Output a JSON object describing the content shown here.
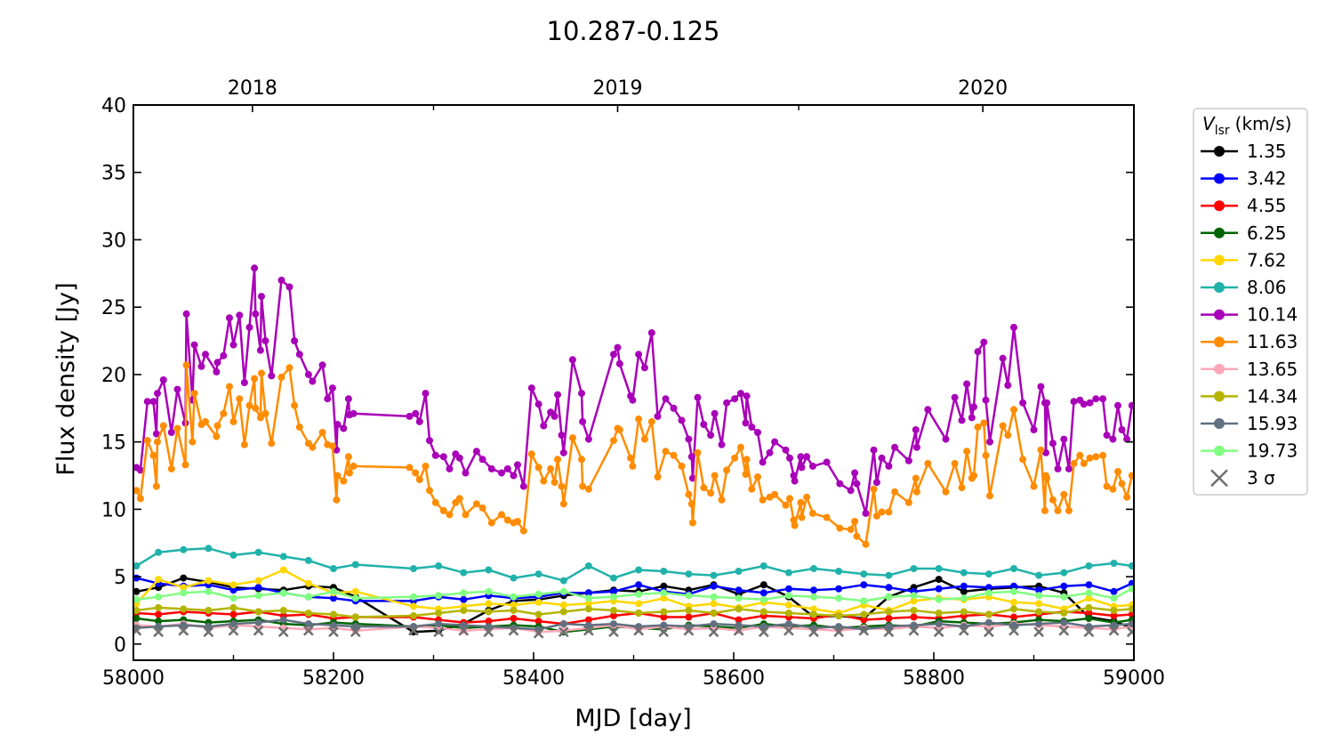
{
  "chart_data": {
    "type": "line",
    "title": "10.287-0.125",
    "xlabel": "MJD [day]",
    "ylabel": "Flux density [Jy]",
    "xlim": [
      58000,
      59000
    ],
    "ylim": [
      -1.2,
      40
    ],
    "grid": false,
    "xticks": [
      58000,
      58200,
      58400,
      58600,
      58800,
      59000
    ],
    "xticks_minor": [
      58100,
      58300,
      58500,
      58700,
      58900
    ],
    "yticks": [
      0,
      5,
      10,
      15,
      20,
      25,
      30,
      35,
      40
    ],
    "top_axis": {
      "ticks": [
        {
          "mjd": 58119,
          "label": "2018"
        },
        {
          "mjd": 58484,
          "label": "2019"
        },
        {
          "mjd": 58849,
          "label": "2020"
        }
      ],
      "minor_ticks_mjd": [
        58300,
        58665
      ]
    },
    "legend": {
      "placement": "outside-right",
      "title_symbol": "V",
      "title_subscript": "lsr",
      "title_unit": "(km/s)"
    },
    "x_dense": [
      58003,
      58007,
      58014,
      58020,
      58023,
      58024,
      58030,
      58038,
      58044,
      58052,
      58053,
      58059,
      58061,
      58068,
      58072,
      58083,
      58084,
      58090,
      58096,
      58100,
      58106,
      58111,
      58116,
      58121,
      58122,
      58127,
      58128,
      58132,
      58138,
      58148,
      58156,
      58161,
      58166,
      58175,
      58179,
      58189,
      58194,
      58199,
      58203,
      58204,
      58210,
      58215,
      58216,
      58220,
      58276,
      58282,
      58286,
      58292,
      58296,
      58302,
      58310,
      58316,
      58322,
      58326,
      58332,
      58343,
      58349,
      58358,
      58368,
      58374,
      58380,
      58384,
      58390,
      58398,
      58405,
      58410,
      58417,
      58421,
      58424,
      58428,
      58430,
      58439,
      58448,
      58449,
      58455,
      58480,
      58484,
      58486,
      58497,
      58499,
      58505,
      58511,
      58518,
      58524,
      58532,
      58540,
      58548,
      58555,
      58558,
      58559,
      58564,
      58570,
      58577,
      58581,
      58588,
      58593,
      58601,
      58607,
      58612,
      58613,
      58618,
      58624,
      58629,
      58636,
      58641,
      58652,
      58656,
      58660,
      58661,
      58667,
      58668,
      58673,
      58679,
      58693,
      58706,
      58717,
      58721,
      58723,
      58732,
      58740,
      58743,
      58748,
      58755,
      58761,
      58775,
      58782,
      58783,
      58794,
      58812,
      58821,
      58828,
      58833,
      58838,
      58840,
      58844,
      58850,
      58852,
      58856,
      58869,
      58874,
      58880,
      58889,
      58900,
      58907,
      58911,
      58912,
      58913,
      58919,
      58924,
      58930,
      58935,
      58940,
      58946,
      58950,
      58956,
      58962,
      58969,
      58973,
      58979,
      58984,
      58988,
      58993,
      58998
    ],
    "x_grid": [
      58003,
      58025,
      58050,
      58075,
      58100,
      58125,
      58150,
      58175,
      58200,
      58222,
      58280,
      58305,
      58330,
      58355,
      58380,
      58405,
      58430,
      58455,
      58480,
      58505,
      58530,
      58555,
      58580,
      58605,
      58630,
      58655,
      58680,
      58705,
      58730,
      58755,
      58780,
      58805,
      58830,
      58855,
      58880,
      58905,
      58930,
      58955,
      58980,
      58998
    ],
    "series": [
      {
        "name": "1.35",
        "color": "#000000",
        "x_set": "x_grid",
        "marker": "o",
        "values": [
          3.9,
          4.2,
          4.9,
          4.6,
          4.2,
          4.1,
          4.0,
          4.3,
          4.2,
          3.5,
          0.9,
          1.0,
          1.5,
          2.5,
          3.2,
          3.3,
          3.6,
          3.8,
          4.0,
          3.9,
          4.3,
          4.0,
          4.4,
          3.7,
          4.4,
          3.5,
          2.0,
          2.1,
          1.9,
          3.5,
          4.2,
          4.8,
          3.9,
          4.1,
          4.2,
          4.3,
          3.8,
          2.0,
          1.7,
          1.2
        ]
      },
      {
        "name": "3.42",
        "color": "#0000ff",
        "x_set": "x_grid",
        "marker": "o",
        "values": [
          4.9,
          4.5,
          4.3,
          4.4,
          4.0,
          4.2,
          3.8,
          3.5,
          3.4,
          3.2,
          3.2,
          3.5,
          3.3,
          3.6,
          3.4,
          3.5,
          3.8,
          3.8,
          3.9,
          4.4,
          3.9,
          3.7,
          4.3,
          4.0,
          3.8,
          4.1,
          4.0,
          4.1,
          4.4,
          4.2,
          3.9,
          4.1,
          4.3,
          4.2,
          4.3,
          4.0,
          4.3,
          4.4,
          3.9,
          4.5
        ]
      },
      {
        "name": "4.55",
        "color": "#ff0000",
        "x_set": "x_grid",
        "marker": "o",
        "values": [
          2.3,
          2.2,
          2.4,
          2.3,
          2.2,
          2.4,
          2.1,
          2.2,
          1.9,
          2.0,
          2.0,
          1.8,
          1.6,
          1.7,
          1.9,
          1.7,
          1.5,
          1.8,
          2.1,
          2.3,
          2.0,
          2.0,
          2.3,
          1.8,
          2.1,
          2.0,
          1.9,
          2.2,
          1.8,
          1.9,
          2.0,
          1.9,
          2.1,
          2.2,
          2.0,
          2.2,
          2.4,
          2.3,
          2.1,
          2.2
        ]
      },
      {
        "name": "6.25",
        "color": "#006400",
        "x_set": "x_grid",
        "marker": "o",
        "values": [
          1.9,
          1.7,
          1.8,
          1.6,
          1.7,
          1.8,
          1.5,
          1.4,
          1.6,
          1.5,
          1.3,
          1.4,
          1.2,
          1.3,
          1.4,
          1.3,
          0.9,
          1.1,
          1.3,
          1.2,
          1.1,
          1.4,
          1.3,
          1.2,
          1.5,
          1.3,
          1.4,
          1.2,
          1.3,
          1.4,
          1.3,
          1.7,
          1.6,
          1.5,
          1.6,
          1.8,
          1.7,
          1.9,
          1.6,
          1.8
        ]
      },
      {
        "name": "7.62",
        "color": "#ffd700",
        "x_set": "x_grid",
        "marker": "o",
        "values": [
          3.0,
          4.8,
          4.2,
          4.7,
          4.4,
          4.7,
          5.5,
          4.5,
          3.8,
          3.9,
          2.8,
          2.6,
          2.8,
          3.0,
          2.9,
          3.1,
          2.9,
          3.0,
          3.2,
          3.0,
          3.4,
          2.8,
          3.0,
          2.7,
          3.1,
          2.9,
          2.6,
          2.3,
          2.9,
          2.5,
          3.2,
          3.4,
          3.3,
          3.5,
          3.1,
          3.0,
          2.6,
          3.4,
          2.8,
          2.9
        ]
      },
      {
        "name": "8.06",
        "color": "#20b2aa",
        "x_set": "x_grid",
        "marker": "o",
        "values": [
          5.8,
          6.8,
          7.0,
          7.1,
          6.6,
          6.8,
          6.5,
          6.2,
          5.6,
          5.9,
          5.6,
          5.8,
          5.3,
          5.5,
          4.9,
          5.2,
          4.7,
          5.8,
          4.9,
          5.5,
          5.4,
          5.2,
          5.1,
          5.4,
          5.8,
          5.3,
          5.6,
          5.4,
          5.2,
          5.1,
          5.6,
          5.6,
          5.3,
          5.2,
          5.6,
          5.1,
          5.3,
          5.8,
          6.0,
          5.8
        ]
      },
      {
        "name": "10.14",
        "color": "#a800b8",
        "x_set": "x_dense",
        "marker": "o",
        "values": [
          13.1,
          12.9,
          18.0,
          18.0,
          15.6,
          18.6,
          19.6,
          15.7,
          18.9,
          16.4,
          24.5,
          18.1,
          22.2,
          20.6,
          21.5,
          20.2,
          20.9,
          21.4,
          24.2,
          22.2,
          24.4,
          19.4,
          23.5,
          27.9,
          24.5,
          21.8,
          25.8,
          22.5,
          19.9,
          27.0,
          26.5,
          22.5,
          21.5,
          20.0,
          19.5,
          20.7,
          18.2,
          19.0,
          14.4,
          16.3,
          16.0,
          18.2,
          17.0,
          17.1,
          16.9,
          17.1,
          16.5,
          18.6,
          15.1,
          14.0,
          13.9,
          13.0,
          14.1,
          13.8,
          12.7,
          14.3,
          13.7,
          13.0,
          12.7,
          13.0,
          12.5,
          13.3,
          11.7,
          19.0,
          17.8,
          16.2,
          17.2,
          16.9,
          18.5,
          15.5,
          14.2,
          21.1,
          18.6,
          16.5,
          15.2,
          21.5,
          22.0,
          20.8,
          18.4,
          18.1,
          21.5,
          20.5,
          23.1,
          16.9,
          18.2,
          17.5,
          16.6,
          15.2,
          13.9,
          12.3,
          18.3,
          16.3,
          15.5,
          17.1,
          14.8,
          17.9,
          18.2,
          18.6,
          16.4,
          18.4,
          16.1,
          15.7,
          13.5,
          14.2,
          15.0,
          14.4,
          13.8,
          12.5,
          12.1,
          13.9,
          13.1,
          13.9,
          13.2,
          13.5,
          11.9,
          11.4,
          12.7,
          11.9,
          9.7,
          14.4,
          12.0,
          13.8,
          13.2,
          14.6,
          13.6,
          15.9,
          14.6,
          17.4,
          15.2,
          18.3,
          16.6,
          19.3,
          16.8,
          17.6,
          21.7,
          22.4,
          18.1,
          15.0,
          21.2,
          19.2,
          23.5,
          17.9,
          15.9,
          19.1,
          17.9,
          14.2,
          17.9,
          14.9,
          13.0,
          15.2,
          13.0,
          18.0,
          18.1,
          17.8,
          17.9,
          18.2,
          18.2,
          15.5,
          15.2,
          17.7,
          15.9,
          15.2,
          17.7
        ]
      },
      {
        "name": "11.63",
        "color": "#ff8c00",
        "x_set": "x_dense",
        "marker": "o",
        "values": [
          11.4,
          10.8,
          15.1,
          14.0,
          11.7,
          15.0,
          16.2,
          13.0,
          16.0,
          13.3,
          20.7,
          15.0,
          18.6,
          16.3,
          16.5,
          15.4,
          16.2,
          17.1,
          19.1,
          16.5,
          18.2,
          14.8,
          17.7,
          19.7,
          17.5,
          16.8,
          20.1,
          17.1,
          14.9,
          19.8,
          20.5,
          17.7,
          16.1,
          14.9,
          14.6,
          15.7,
          14.8,
          14.7,
          10.7,
          12.5,
          12.1,
          13.9,
          12.7,
          13.2,
          13.1,
          12.7,
          12.2,
          13.2,
          11.4,
          10.5,
          9.9,
          9.6,
          10.5,
          10.8,
          9.6,
          10.4,
          10.1,
          9.0,
          9.6,
          9.2,
          9.0,
          9.1,
          8.4,
          14.1,
          13.1,
          12.1,
          13.0,
          12.0,
          13.7,
          11.7,
          10.4,
          15.3,
          13.7,
          11.7,
          11.5,
          15.1,
          16.0,
          15.9,
          13.8,
          13.2,
          16.7,
          15.2,
          16.5,
          12.4,
          14.3,
          14.0,
          13.2,
          11.1,
          10.4,
          9.0,
          14.2,
          11.6,
          11.2,
          12.5,
          10.7,
          12.9,
          13.8,
          14.6,
          12.6,
          13.7,
          11.5,
          12.4,
          10.7,
          10.9,
          11.1,
          10.3,
          10.8,
          9.2,
          8.8,
          10.5,
          9.4,
          10.9,
          9.7,
          9.4,
          8.6,
          8.5,
          9.1,
          8.0,
          7.4,
          11.5,
          9.5,
          9.8,
          9.8,
          11.3,
          10.5,
          12.3,
          11.3,
          13.4,
          11.3,
          13.4,
          11.6,
          14.3,
          12.3,
          12.5,
          16.1,
          16.4,
          14.0,
          11.0,
          16.2,
          15.5,
          17.4,
          13.7,
          11.7,
          14.4,
          9.9,
          12.5,
          12.3,
          10.7,
          9.9,
          11.1,
          9.9,
          13.4,
          14.0,
          13.4,
          13.8,
          13.9,
          14.0,
          11.7,
          11.5,
          12.8,
          11.9,
          10.9,
          12.5
        ]
      },
      {
        "name": "13.65",
        "color": "#ffa8b8",
        "x_set": "x_grid",
        "marker": "o",
        "values": [
          1.4,
          1.3,
          1.5,
          1.2,
          1.4,
          1.3,
          1.2,
          1.1,
          1.2,
          1.0,
          1.3,
          1.2,
          1.0,
          1.1,
          1.2,
          0.9,
          1.0,
          1.2,
          1.4,
          1.1,
          1.3,
          1.1,
          1.2,
          1.0,
          1.3,
          1.2,
          1.1,
          1.0,
          1.2,
          1.1,
          1.3,
          1.2,
          1.4,
          1.3,
          1.5,
          1.4,
          1.3,
          1.2,
          1.1,
          1.3
        ]
      },
      {
        "name": "14.34",
        "color": "#b4b400",
        "x_set": "x_grid",
        "marker": "o",
        "values": [
          2.5,
          2.7,
          2.6,
          2.5,
          2.7,
          2.4,
          2.5,
          2.3,
          2.2,
          2.0,
          2.1,
          2.3,
          2.5,
          2.4,
          2.5,
          2.2,
          2.4,
          2.6,
          2.5,
          2.3,
          2.4,
          2.5,
          2.3,
          2.6,
          2.4,
          2.3,
          2.2,
          2.1,
          2.2,
          2.4,
          2.5,
          2.3,
          2.4,
          2.2,
          2.6,
          2.4,
          2.3,
          2.7,
          2.5,
          2.6
        ]
      },
      {
        "name": "15.93",
        "color": "#607080",
        "x_set": "x_grid",
        "marker": "o",
        "values": [
          1.2,
          1.3,
          1.4,
          1.3,
          1.5,
          1.6,
          1.8,
          1.5,
          1.4,
          1.3,
          1.3,
          1.5,
          1.4,
          1.3,
          1.2,
          1.1,
          1.5,
          1.4,
          1.5,
          1.3,
          1.4,
          1.3,
          1.5,
          1.4,
          1.3,
          1.5,
          1.2,
          1.3,
          1.1,
          1.3,
          1.4,
          1.5,
          1.3,
          1.6,
          1.4,
          1.5,
          1.6,
          1.3,
          1.4,
          1.5
        ]
      },
      {
        "name": "19.73",
        "color": "#80ff80",
        "x_set": "x_grid",
        "marker": "o",
        "values": [
          3.3,
          3.5,
          3.8,
          3.9,
          3.4,
          3.6,
          3.8,
          3.5,
          3.9,
          3.4,
          3.5,
          3.6,
          3.8,
          3.9,
          3.5,
          3.7,
          3.9,
          3.4,
          3.5,
          3.7,
          3.8,
          3.6,
          3.5,
          3.4,
          3.3,
          3.6,
          3.5,
          3.4,
          3.2,
          3.5,
          3.6,
          3.3,
          3.4,
          3.8,
          3.9,
          3.6,
          3.5,
          3.8,
          3.4,
          4.1
        ]
      },
      {
        "name": "3 σ",
        "color": "#707070",
        "x_set": "x_grid",
        "marker": "x",
        "values": [
          1.0,
          0.9,
          1.0,
          0.9,
          1.0,
          1.0,
          0.9,
          1.0,
          0.9,
          0.9,
          1.0,
          0.9,
          1.0,
          0.9,
          1.0,
          0.8,
          0.9,
          1.0,
          0.9,
          1.0,
          0.9,
          1.0,
          0.9,
          1.0,
          0.9,
          1.0,
          0.9,
          0.9,
          1.0,
          0.9,
          1.0,
          0.9,
          1.0,
          0.9,
          1.0,
          0.9,
          1.0,
          0.9,
          1.0,
          0.9
        ]
      }
    ]
  }
}
